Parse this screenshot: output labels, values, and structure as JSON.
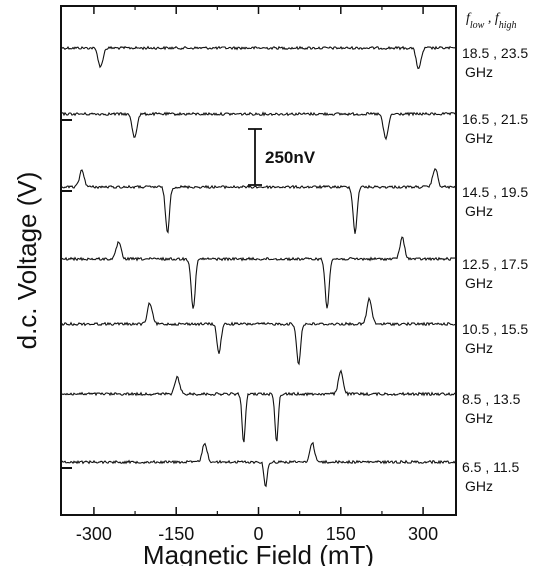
{
  "chart_data": {
    "type": "line",
    "xlabel": "Magnetic Field (mT)",
    "ylabel": "d.c. Voltage (V)",
    "xlim": [
      -360,
      360
    ],
    "x_ticks": [
      -300,
      -150,
      0,
      150,
      300
    ],
    "x_tick_labels": [
      "-300",
      "-150",
      "0",
      "150",
      "300"
    ],
    "header": {
      "low": "f",
      "low_sub": "low",
      "sep": " , ",
      "high": "f",
      "high_sub": "high"
    },
    "scale_bar": {
      "label": "250nV",
      "value_nV": 250
    },
    "color": "#111111",
    "series": [
      {
        "freq": "18.5 , 23.5",
        "unit": "GHz",
        "features": [
          {
            "x": -288,
            "a": -0.9,
            "w": 6
          },
          {
            "x": 292,
            "a": -1.0,
            "w": 6
          }
        ]
      },
      {
        "freq": "16.5 , 21.5",
        "unit": "GHz",
        "features": [
          {
            "x": -226,
            "a": -1.1,
            "w": 6
          },
          {
            "x": 232,
            "a": -1.2,
            "w": 6
          }
        ]
      },
      {
        "freq": "14.5 , 19.5",
        "unit": "GHz",
        "features": [
          {
            "x": -322,
            "a": 0.8,
            "w": 6
          },
          {
            "x": -166,
            "a": -2.2,
            "w": 5
          },
          {
            "x": 176,
            "a": -2.2,
            "w": 5
          },
          {
            "x": 322,
            "a": 0.9,
            "w": 6
          }
        ]
      },
      {
        "freq": "12.5 , 17.5",
        "unit": "GHz",
        "features": [
          {
            "x": -255,
            "a": 0.8,
            "w": 6
          },
          {
            "x": -119,
            "a": -2.4,
            "w": 5
          },
          {
            "x": 125,
            "a": -2.3,
            "w": 5
          },
          {
            "x": 262,
            "a": 1.0,
            "w": 6
          }
        ]
      },
      {
        "freq": "10.5 , 15.5",
        "unit": "GHz",
        "features": [
          {
            "x": -198,
            "a": 1.0,
            "w": 6
          },
          {
            "x": -72,
            "a": -1.4,
            "w": 5
          },
          {
            "x": 73,
            "a": -1.9,
            "w": 5
          },
          {
            "x": 202,
            "a": 1.2,
            "w": 6
          }
        ]
      },
      {
        "freq": "8.5 , 13.5",
        "unit": "GHz",
        "features": [
          {
            "x": -148,
            "a": 0.8,
            "w": 6
          },
          {
            "x": -27,
            "a": -2.4,
            "w": 4
          },
          {
            "x": 33,
            "a": -2.3,
            "w": 4
          },
          {
            "x": 150,
            "a": 1.1,
            "w": 6
          }
        ]
      },
      {
        "freq": "6.5 , 11.5",
        "unit": "GHz",
        "features": [
          {
            "x": -98,
            "a": 0.9,
            "w": 6
          },
          {
            "x": 13,
            "a": -1.2,
            "w": 4
          },
          {
            "x": 98,
            "a": 0.9,
            "w": 6
          }
        ]
      }
    ]
  }
}
